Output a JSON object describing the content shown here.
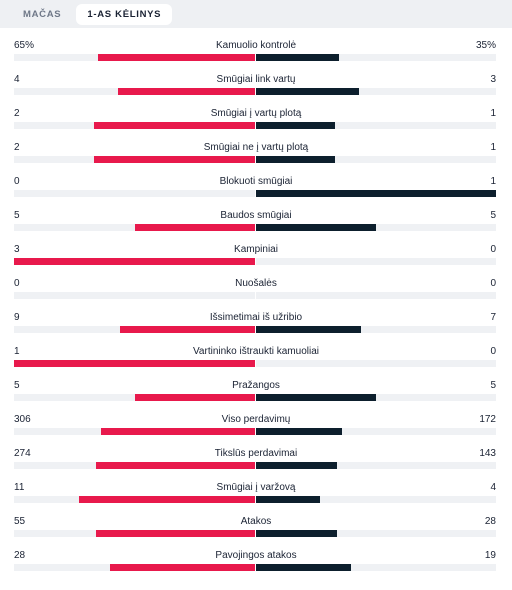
{
  "tabs": [
    {
      "label": "MAČAS",
      "active": false
    },
    {
      "label": "1-AS KĖLINYS",
      "active": true
    }
  ],
  "colors": {
    "left": "#e8194c",
    "right": "#0d1f2d",
    "track": "#eff1f4"
  },
  "stats": [
    {
      "label": "Kamuolio kontrolė",
      "left": "65%",
      "right": "35%",
      "left_share": 0.65,
      "right_share": 0.35
    },
    {
      "label": "Smūgiai link vartų",
      "left": "4",
      "right": "3",
      "left_share": 0.57,
      "right_share": 0.43
    },
    {
      "label": "Smūgiai į vartų plotą",
      "left": "2",
      "right": "1",
      "left_share": 0.67,
      "right_share": 0.33
    },
    {
      "label": "Smūgiai ne į vartų plotą",
      "left": "2",
      "right": "1",
      "left_share": 0.67,
      "right_share": 0.33
    },
    {
      "label": "Blokuoti smūgiai",
      "left": "0",
      "right": "1",
      "left_share": 0.0,
      "right_share": 1.0
    },
    {
      "label": "Baudos smūgiai",
      "left": "5",
      "right": "5",
      "left_share": 0.5,
      "right_share": 0.5
    },
    {
      "label": "Kampiniai",
      "left": "3",
      "right": "0",
      "left_share": 1.0,
      "right_share": 0.0
    },
    {
      "label": "Nuošalės",
      "left": "0",
      "right": "0",
      "left_share": 0.0,
      "right_share": 0.0
    },
    {
      "label": "Išsimetimai iš užribio",
      "left": "9",
      "right": "7",
      "left_share": 0.56,
      "right_share": 0.44
    },
    {
      "label": "Vartininko ištraukti kamuoliai",
      "left": "1",
      "right": "0",
      "left_share": 1.0,
      "right_share": 0.0
    },
    {
      "label": "Pražangos",
      "left": "5",
      "right": "5",
      "left_share": 0.5,
      "right_share": 0.5
    },
    {
      "label": "Viso perdavimų",
      "left": "306",
      "right": "172",
      "left_share": 0.64,
      "right_share": 0.36
    },
    {
      "label": "Tikslūs perdavimai",
      "left": "274",
      "right": "143",
      "left_share": 0.66,
      "right_share": 0.34
    },
    {
      "label": "Smūgiai į varžovą",
      "left": "11",
      "right": "4",
      "left_share": 0.73,
      "right_share": 0.27
    },
    {
      "label": "Atakos",
      "left": "55",
      "right": "28",
      "left_share": 0.66,
      "right_share": 0.34
    },
    {
      "label": "Pavojingos atakos",
      "left": "28",
      "right": "19",
      "left_share": 0.6,
      "right_share": 0.4
    }
  ]
}
